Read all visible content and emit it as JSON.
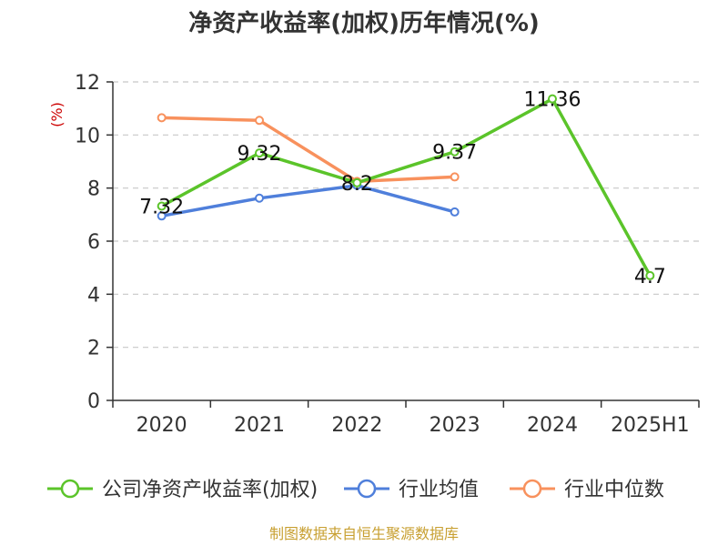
{
  "chart_data": {
    "type": "line",
    "title": "净资产收益率(加权)历年情况(%)",
    "ylabel": "(%)",
    "xlabel": "",
    "categories": [
      "2020",
      "2021",
      "2022",
      "2023",
      "2024",
      "2025H1"
    ],
    "ylim": [
      0,
      12
    ],
    "yticks": [
      0,
      2,
      4,
      6,
      8,
      10,
      12
    ],
    "grid": true,
    "legend_position": "bottom",
    "series": [
      {
        "name": "公司净资产收益率(加权)",
        "color": "#5bc42a",
        "values": [
          7.32,
          9.32,
          8.2,
          9.37,
          11.36,
          4.7
        ],
        "labels": [
          "7.32",
          "9.32",
          "8.2",
          "9.37",
          "11.36",
          "4.7"
        ]
      },
      {
        "name": "行业均值",
        "color": "#4f7fdb",
        "values": [
          6.95,
          7.62,
          8.1,
          7.1,
          null,
          null
        ]
      },
      {
        "name": "行业中位数",
        "color": "#f8915d",
        "values": [
          10.65,
          10.55,
          8.25,
          8.42,
          null,
          null
        ]
      }
    ]
  },
  "source": "制图数据来自恒生聚源数据库"
}
